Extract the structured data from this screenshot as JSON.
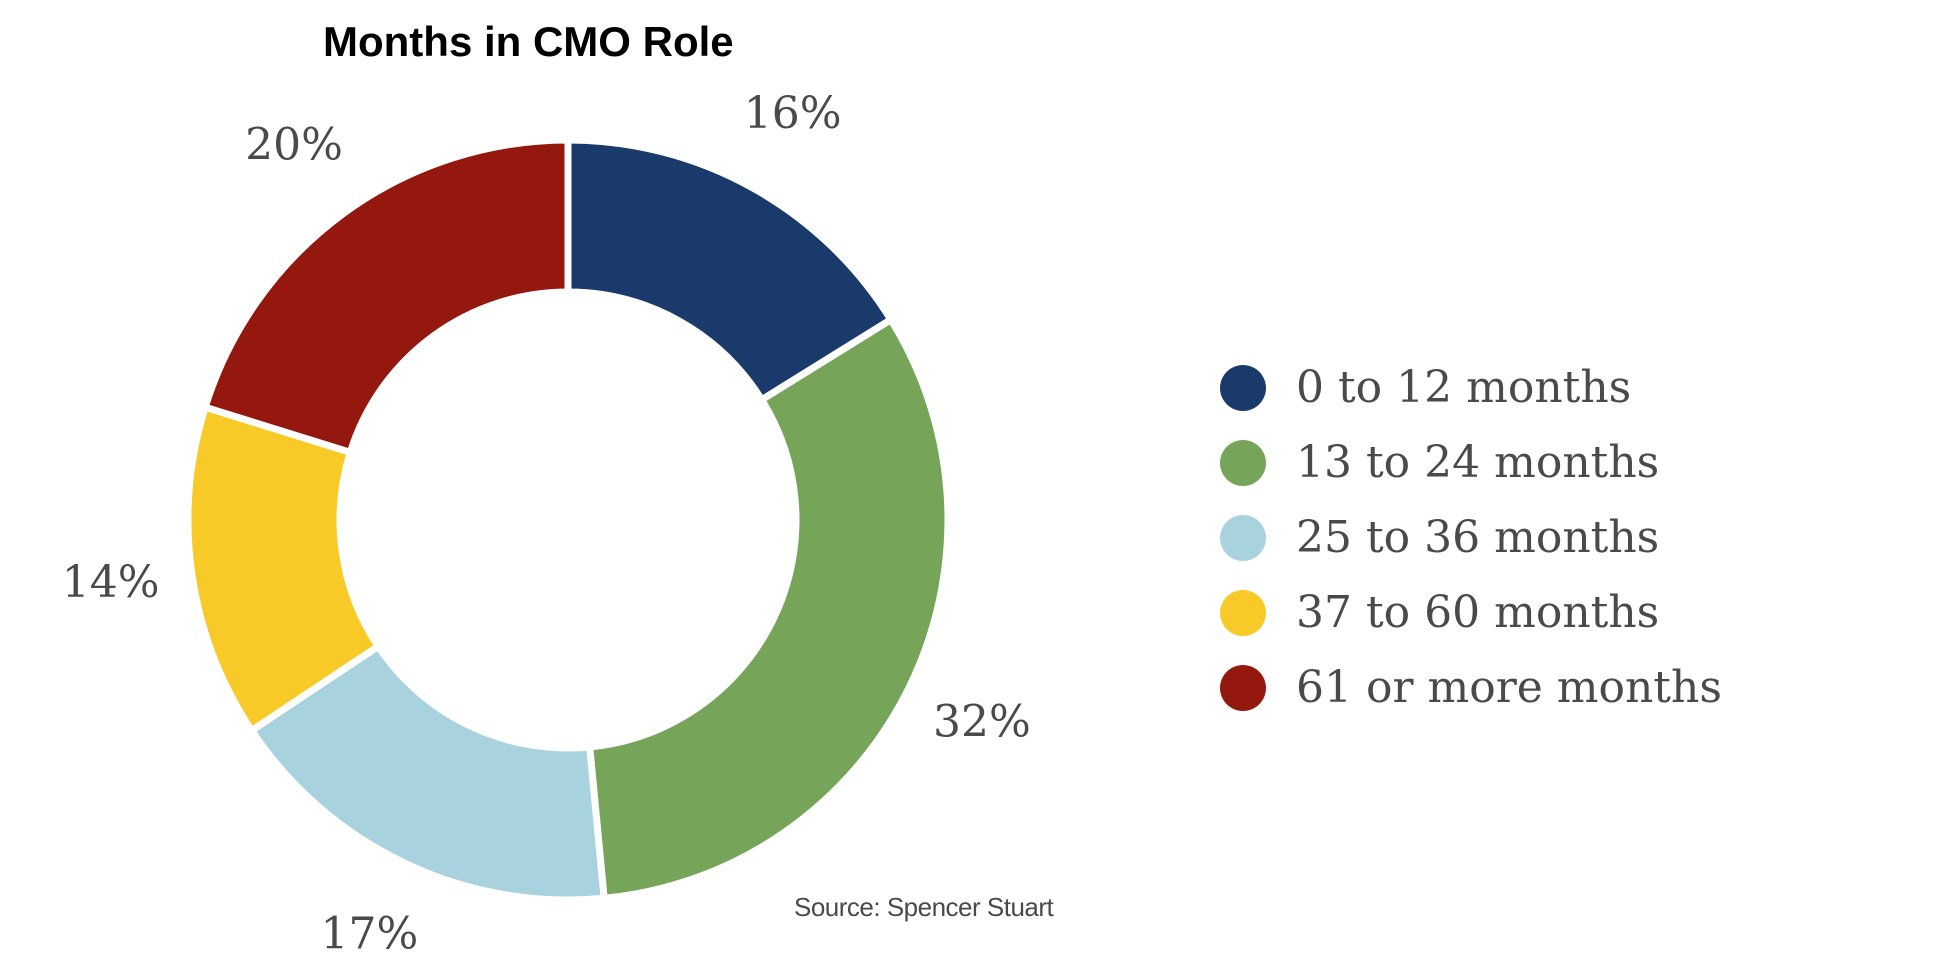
{
  "title": "Months in CMO Role",
  "source": "Source: Spencer Stuart",
  "chart_data": {
    "type": "pie",
    "subtype": "donut",
    "title": "Months in CMO Role",
    "categories": [
      "0 to 12 months",
      "13 to 24 months",
      "25 to 36 months",
      "37 to 60 months",
      "61 or more months"
    ],
    "values": [
      16,
      32,
      17,
      14,
      20
    ],
    "value_labels": [
      "16%",
      "32%",
      "17%",
      "14%",
      "20%"
    ],
    "colors": [
      "#1a3a6c",
      "#76a559",
      "#a8d3de",
      "#f8ca28",
      "#94180e"
    ],
    "legend_position": "right",
    "start_angle": "top",
    "direction": "clockwise"
  },
  "legend": {
    "items": [
      {
        "label": "0 to 12 months",
        "color": "#1a3a6c"
      },
      {
        "label": "13 to 24 months",
        "color": "#76a559"
      },
      {
        "label": "25 to 36 months",
        "color": "#a8d3de"
      },
      {
        "label": "37 to 60 months",
        "color": "#f8ca28"
      },
      {
        "label": "61 or more months",
        "color": "#94180e"
      }
    ]
  }
}
